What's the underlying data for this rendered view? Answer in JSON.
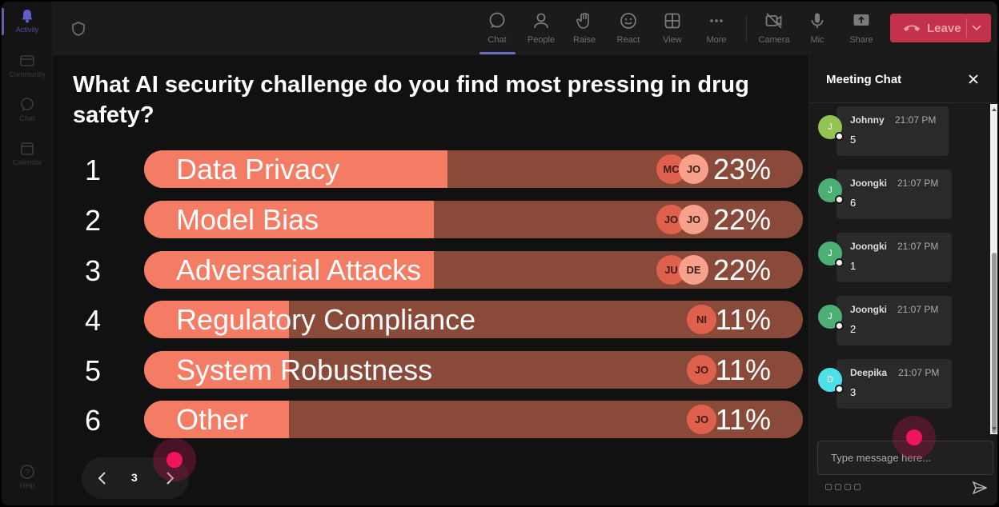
{
  "rail": {
    "items": [
      {
        "label": "Activity",
        "icon": "bell-icon",
        "active": true
      },
      {
        "label": "Community",
        "icon": "community-icon"
      },
      {
        "label": "Chat",
        "icon": "chat-icon"
      },
      {
        "label": "Calendar",
        "icon": "calendar-icon"
      },
      {
        "label": "Help",
        "icon": "help-icon"
      }
    ]
  },
  "toolbar": {
    "chat": "Chat",
    "people": "People",
    "raise": "Raise",
    "react": "React",
    "view": "View",
    "more": "More",
    "camera": "Camera",
    "mic": "Mic",
    "share": "Share",
    "leave": "Leave"
  },
  "poll": {
    "question": "What AI security challenge do you find most pressing in drug safety?",
    "options": [
      {
        "num": "1",
        "label": "Data Privacy",
        "pct": "23%",
        "fraction": 0.23,
        "avatars": [
          "MC",
          "JO"
        ]
      },
      {
        "num": "2",
        "label": "Model Bias",
        "pct": "22%",
        "fraction": 0.22,
        "avatars": [
          "JO",
          "JO"
        ]
      },
      {
        "num": "3",
        "label": "Adversarial Attacks",
        "pct": "22%",
        "fraction": 0.22,
        "avatars": [
          "JU",
          "DE"
        ]
      },
      {
        "num": "4",
        "label": "Regulatory Compliance",
        "pct": "11%",
        "fraction": 0.11,
        "avatars": [
          "NI"
        ]
      },
      {
        "num": "5",
        "label": "System Robustness",
        "pct": "11%",
        "fraction": 0.11,
        "avatars": [
          "JO"
        ]
      },
      {
        "num": "6",
        "label": "Other",
        "pct": "11%",
        "fraction": 0.11,
        "avatars": [
          "JO"
        ]
      }
    ],
    "page": "3"
  },
  "chat": {
    "title": "Meeting Chat",
    "messages": [
      {
        "initial": "J",
        "name": "Johnny",
        "time": "21:07 PM",
        "text": "5",
        "color": "#92c353"
      },
      {
        "initial": "J",
        "name": "Joongki",
        "time": "21:07 PM",
        "text": "6",
        "color": "#4caf74"
      },
      {
        "initial": "J",
        "name": "Joongki",
        "time": "21:07 PM",
        "text": "1",
        "color": "#4caf74"
      },
      {
        "initial": "J",
        "name": "Joongki",
        "time": "21:07 PM",
        "text": "2",
        "color": "#4caf74"
      },
      {
        "initial": "D",
        "name": "Deepika",
        "time": "21:07 PM",
        "text": "3",
        "color": "#4de0e8"
      }
    ],
    "placeholder": "Type message here..."
  },
  "colors": {
    "bar_fill": "#f47c64",
    "bar_track": "#8a4a3a",
    "leave": "#c4314b",
    "accent": "#6264a7"
  }
}
